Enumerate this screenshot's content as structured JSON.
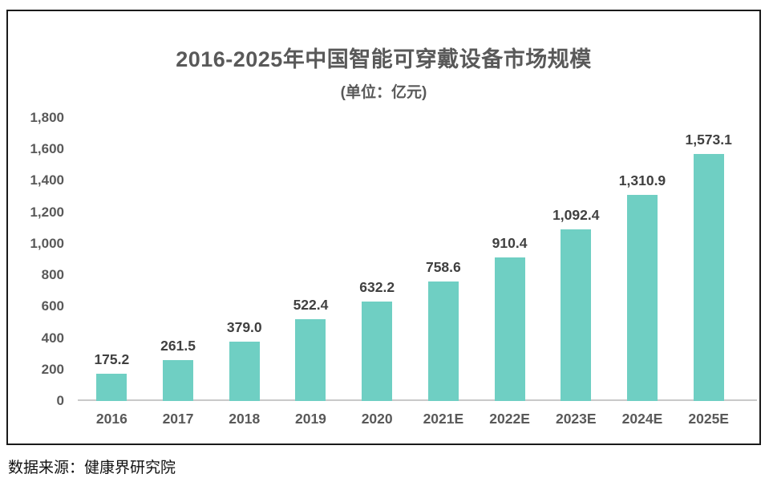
{
  "chart_data": {
    "type": "bar",
    "title": "2016-2025年中国智能可穿戴设备市场规模",
    "subtitle": "(单位：亿元)",
    "categories": [
      "2016",
      "2017",
      "2018",
      "2019",
      "2020",
      "2021E",
      "2022E",
      "2023E",
      "2024E",
      "2025E"
    ],
    "values": [
      175.2,
      261.5,
      379.0,
      522.4,
      632.2,
      758.6,
      910.4,
      1092.4,
      1310.9,
      1573.1
    ],
    "value_labels": [
      "175.2",
      "261.5",
      "379.0",
      "522.4",
      "632.2",
      "758.6",
      "910.4",
      "1,092.4",
      "1,310.9",
      "1,573.1"
    ],
    "ylim": [
      0,
      1800
    ],
    "ytick_step": 200,
    "ytick_labels": [
      "0",
      "200",
      "400",
      "600",
      "800",
      "1,000",
      "1,200",
      "1,400",
      "1,600",
      "1,800"
    ],
    "grid": false,
    "legend": "none",
    "bar_color": "#6fcfc3",
    "title_color": "#595959",
    "data_label_color": "#404040",
    "axis_label_color": "#595959",
    "axis_line_color": "#c9c9c9"
  },
  "source_note": "数据来源：健康界研究院"
}
